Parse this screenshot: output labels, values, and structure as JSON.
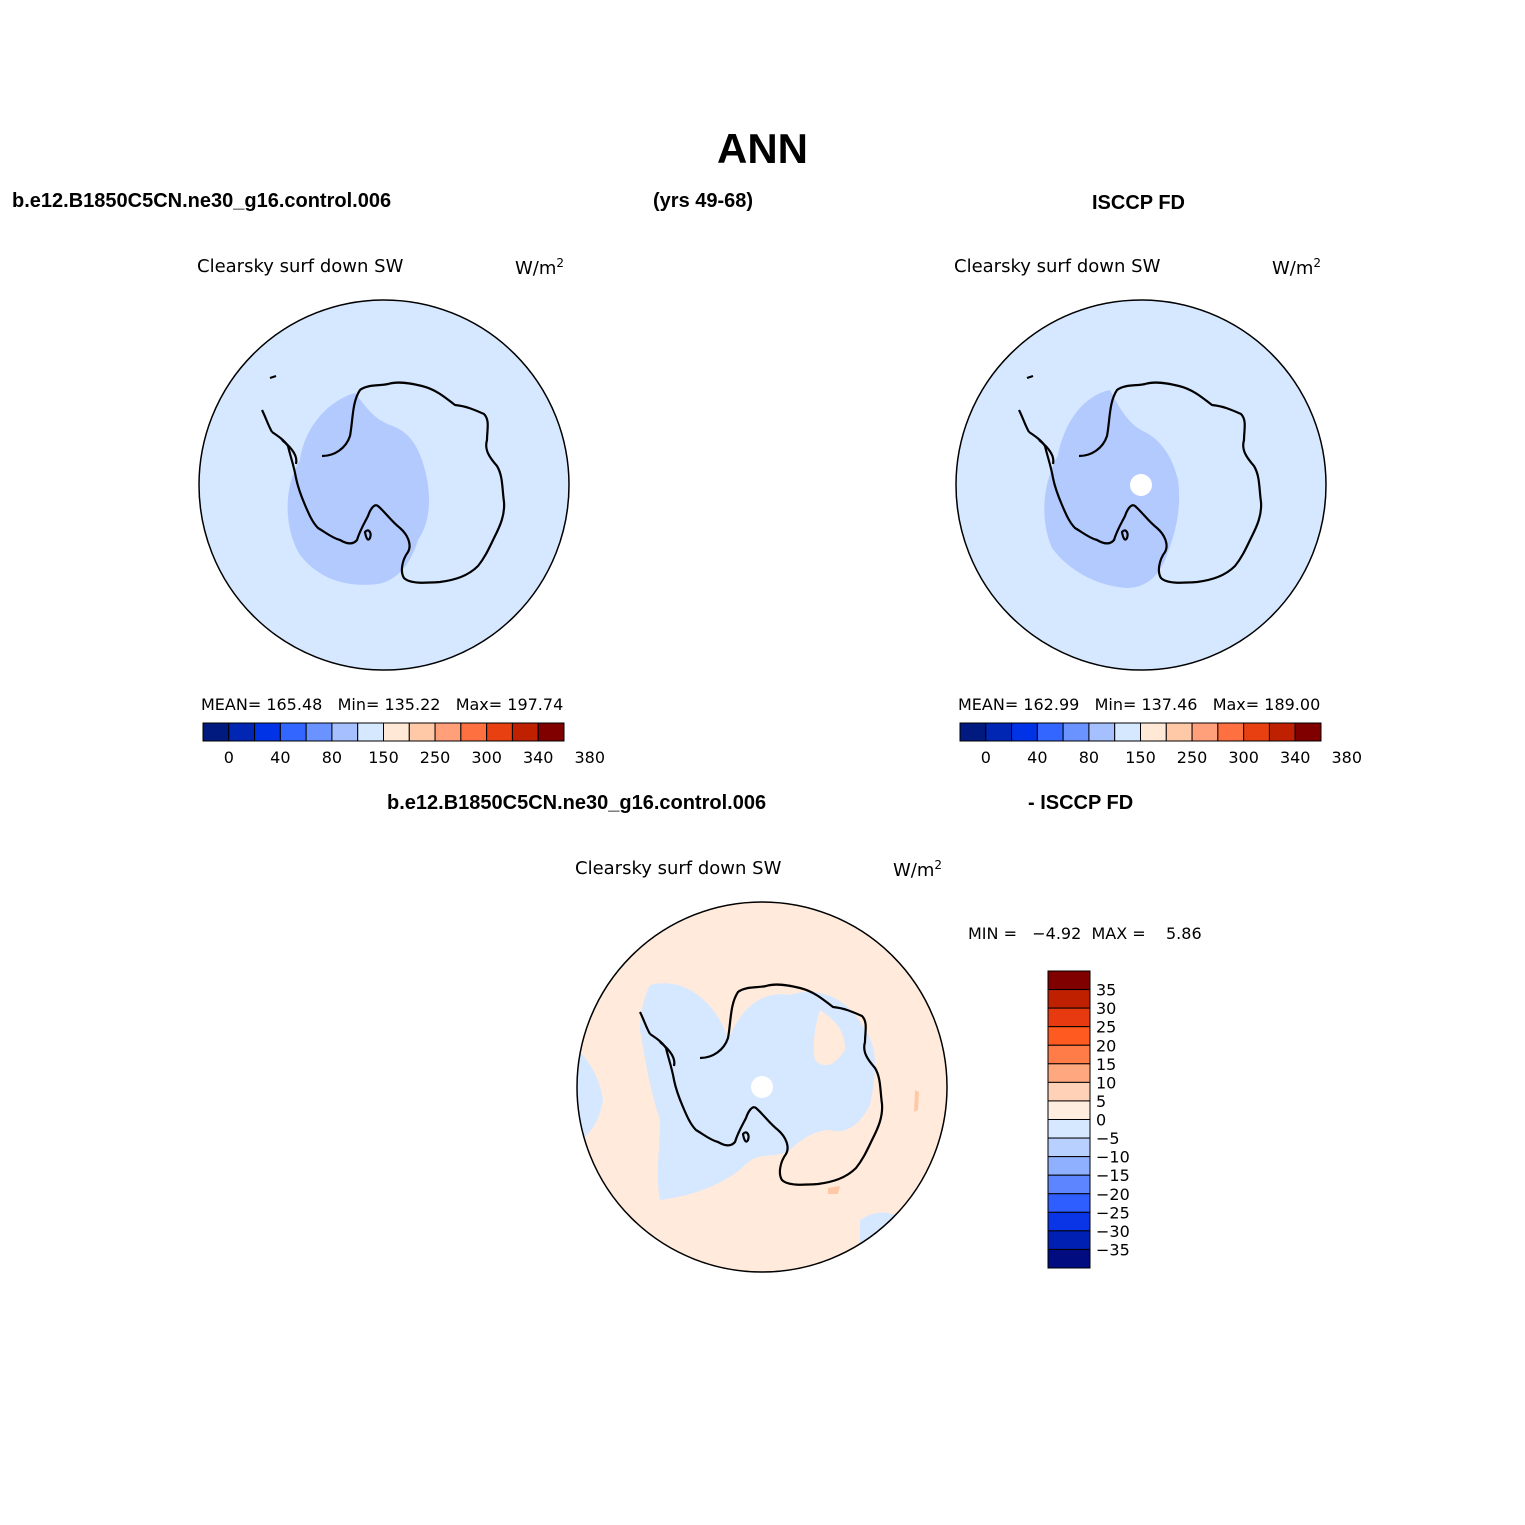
{
  "page": {
    "title": "ANN",
    "case_name": "b.e12.B1850C5CN.ne30_g16.control.006",
    "years": "(yrs 49-68)",
    "obs_name": "ISCCP FD",
    "diff_left": "b.e12.B1850C5CN.ne30_g16.control.006",
    "diff_right": "- ISCCP FD"
  },
  "panels": {
    "model": {
      "variable": "Clearsky surf down SW",
      "units": "W/m",
      "units_sup": "2",
      "stats": "MEAN= 165.48   Min= 135.22   Max= 197.74"
    },
    "obs": {
      "variable": "Clearsky surf down SW",
      "units": "W/m",
      "units_sup": "2",
      "stats": "MEAN= 162.99   Min= 137.46   Max= 189.00"
    },
    "diff": {
      "variable": "Clearsky surf down SW",
      "units": "W/m",
      "units_sup": "2",
      "minmax": "MIN =   −4.92  MAX =    5.86"
    }
  },
  "colorbars": {
    "abs": {
      "colors": [
        "#001a80",
        "#0026b3",
        "#0033e6",
        "#3366ff",
        "#6b93ff",
        "#a6c0ff",
        "#d6e8ff",
        "#ffe8d6",
        "#ffc9a8",
        "#ffa07a",
        "#ff7040",
        "#e84010",
        "#bf2000",
        "#800000"
      ],
      "ticks": [
        "0",
        "40",
        "80",
        "150",
        "250",
        "300",
        "340",
        "380"
      ]
    },
    "diff": {
      "colors": [
        "#800000",
        "#bf2000",
        "#e83a10",
        "#ff5a20",
        "#ff7b48",
        "#ffa880",
        "#ffd2b8",
        "#ffeedf",
        "#d6e8ff",
        "#b8d0ff",
        "#8fb0ff",
        "#5c85ff",
        "#2e5eff",
        "#0a35e6",
        "#0020b3",
        "#000c80"
      ],
      "ticks": [
        "35",
        "30",
        "25",
        "20",
        "15",
        "10",
        "5",
        "0",
        "−5",
        "−10",
        "−15",
        "−20",
        "−25",
        "−30",
        "−35"
      ]
    }
  },
  "map_colors": {
    "ocean_abs": "#d6e8ff",
    "interior_abs": "#b3caff",
    "diff_positive": "#ffeadb",
    "diff_negative": "#d6e8ff",
    "diff_strong": "#ffc9a8"
  }
}
